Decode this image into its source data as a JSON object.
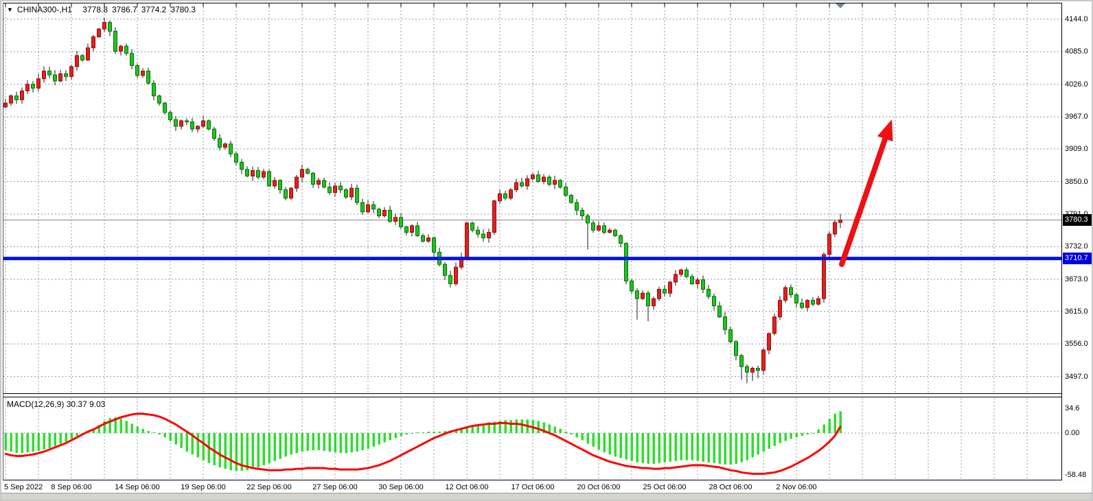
{
  "info_bar": {
    "collapse_icon": "▼",
    "symbol": "CHINA300-,H1",
    "open": "3778.8",
    "high": "3786.7",
    "low": "3774.2",
    "close": "3780.3"
  },
  "indicator_bar": {
    "name_params": "MACD(12,26,9)",
    "main_value": "30.37",
    "signal_value": "9.03"
  },
  "badges": {
    "current_price": "3780.3",
    "support_line_price": "3710.7"
  },
  "colors": {
    "candle_up": "#e02020",
    "candle_up_border": "#9b0b0b",
    "candle_down": "#1fc423",
    "candle_down_border": "#007000",
    "wick": "#1a1a1a",
    "grid": "#8a98a8",
    "macd_histogram": "#2fdd2f",
    "macd_signal": "#ff0000",
    "support_line": "#0014e6",
    "current_price_line": "#808080",
    "arrow": "#ee1111",
    "badge_current_bg": "#000000",
    "badge_line_bg": "#0000dd",
    "last_bar_marker": "#70828f"
  },
  "chart_data": [
    {
      "type": "candlestick",
      "title": "CHINA300-,H1",
      "timeframe": "H1",
      "ohlc_display": {
        "open": 3778.8,
        "high": 3786.7,
        "low": 3774.2,
        "close": 3780.3
      },
      "support_line": 3710.7,
      "current_price": 3780.3,
      "ylim": [
        3470,
        4160
      ],
      "y_ticks": [
        "4144.0",
        "4085.0",
        "4026.0",
        "3967.0",
        "3909.0",
        "3850.0",
        "3791.0",
        "3732.0",
        "3673.0",
        "3615.0",
        "3556.0",
        "3497.0"
      ],
      "x_labels": [
        "5 Sep 2022",
        "8 Sep 06:00",
        "14 Sep 06:00",
        "19 Sep 06:00",
        "22 Sep 06:00",
        "27 Sep 06:00",
        "30 Sep 06:00",
        "12 Oct 06:00",
        "17 Oct 06:00",
        "20 Oct 06:00",
        "25 Oct 06:00",
        "28 Oct 06:00",
        "2 Nov 06:00"
      ],
      "first_open": 3985,
      "closes": [
        3992,
        4005,
        3998,
        4014,
        4026,
        4019,
        4036,
        4050,
        4043,
        4032,
        4045,
        4040,
        4058,
        4078,
        4070,
        4092,
        4112,
        4126,
        4138,
        4122,
        4086,
        4095,
        4082,
        4060,
        4042,
        4050,
        4028,
        4005,
        3992,
        3975,
        3962,
        3950,
        3960,
        3958,
        3945,
        3950,
        3960,
        3945,
        3928,
        3912,
        3918,
        3900,
        3885,
        3872,
        3860,
        3870,
        3858,
        3868,
        3842,
        3852,
        3835,
        3820,
        3838,
        3858,
        3872,
        3865,
        3845,
        3852,
        3840,
        3830,
        3842,
        3835,
        3822,
        3838,
        3812,
        3795,
        3808,
        3800,
        3788,
        3798,
        3778,
        3785,
        3768,
        3758,
        3770,
        3752,
        3742,
        3748,
        3722,
        3700,
        3680,
        3665,
        3695,
        3712,
        3775,
        3762,
        3755,
        3748,
        3758,
        3815,
        3828,
        3820,
        3835,
        3848,
        3842,
        3855,
        3862,
        3850,
        3858,
        3845,
        3852,
        3840,
        3825,
        3812,
        3798,
        3788,
        3775,
        3762,
        3770,
        3758,
        3762,
        3752,
        3738,
        3670,
        3652,
        3638,
        3648,
        3625,
        3638,
        3655,
        3648,
        3668,
        3682,
        3690,
        3678,
        3665,
        3672,
        3655,
        3642,
        3625,
        3605,
        3582,
        3560,
        3535,
        3515,
        3505,
        3512,
        3508,
        3545,
        3575,
        3605,
        3635,
        3658,
        3645,
        3630,
        3622,
        3635,
        3628,
        3638,
        3718,
        3755,
        3776,
        3780.3
      ],
      "wick_overrides": {
        "78": [
          3,
          14
        ],
        "106": [
          4,
          48
        ],
        "113": [
          2,
          6
        ],
        "115": [
          5,
          38
        ],
        "117": [
          4,
          28
        ],
        "134": [
          3,
          24
        ],
        "135": [
          4,
          20
        ],
        "136": [
          3,
          16
        ],
        "137": [
          5,
          14
        ],
        "152": [
          11,
          10
        ]
      }
    },
    {
      "type": "bar",
      "name": "MACD(12,26,9)",
      "main_value": 30.37,
      "signal_value": 9.03,
      "y_ticks": [
        "34.6",
        "0.00",
        "-58.48"
      ],
      "ylim": [
        -58.48,
        34.6
      ],
      "histogram": [
        -24,
        -26,
        -28,
        -28,
        -27,
        -26,
        -25,
        -23,
        -21,
        -18,
        -15,
        -12,
        -8,
        -4,
        -2,
        2,
        6,
        11,
        17,
        21,
        22,
        20,
        17,
        13,
        9,
        6,
        3,
        1,
        -2,
        -6,
        -11,
        -16,
        -21,
        -26,
        -30,
        -34,
        -38,
        -42,
        -45,
        -48,
        -50,
        -52,
        -53,
        -53,
        -52,
        -50,
        -48,
        -45,
        -42,
        -39,
        -36,
        -33,
        -30,
        -28,
        -26,
        -25,
        -24,
        -24,
        -25,
        -26,
        -27,
        -28,
        -28,
        -27,
        -26,
        -24,
        -22,
        -19,
        -16,
        -13,
        -10,
        -7,
        -4,
        -2,
        0,
        1,
        1,
        2,
        2,
        2,
        3,
        3,
        4,
        5,
        7,
        9,
        11,
        13,
        15,
        16,
        17,
        18,
        18,
        19,
        19,
        19,
        18,
        17,
        15,
        12,
        9,
        6,
        2,
        -2,
        -6,
        -10,
        -15,
        -19,
        -23,
        -27,
        -30,
        -33,
        -35,
        -37,
        -39,
        -41,
        -42,
        -43,
        -43,
        -42,
        -41,
        -40,
        -39,
        -38,
        -38,
        -38,
        -39,
        -40,
        -41,
        -42,
        -43,
        -44,
        -44,
        -43,
        -41,
        -38,
        -34,
        -30,
        -26,
        -22,
        -18,
        -14,
        -11,
        -8,
        -6,
        -4,
        -2,
        0,
        5,
        12,
        20,
        27,
        30.4
      ],
      "signal": [
        -29,
        -31,
        -32,
        -32,
        -31,
        -30,
        -28,
        -26,
        -23,
        -20,
        -17,
        -14,
        -10,
        -6,
        -2,
        2,
        5,
        9,
        13,
        16,
        19,
        22,
        24,
        26,
        27,
        27,
        26,
        25,
        23,
        20,
        16,
        12,
        7,
        2,
        -3,
        -9,
        -14,
        -20,
        -25,
        -30,
        -34,
        -38,
        -42,
        -45,
        -47,
        -49,
        -50,
        -51,
        -52,
        -52,
        -52,
        -51,
        -51,
        -50,
        -50,
        -49,
        -49,
        -49,
        -49,
        -50,
        -50,
        -51,
        -51,
        -51,
        -51,
        -50,
        -49,
        -47,
        -45,
        -42,
        -39,
        -35,
        -31,
        -27,
        -23,
        -19,
        -15,
        -11,
        -7,
        -4,
        -1,
        2,
        4,
        6,
        8,
        10,
        11,
        12,
        13,
        13,
        14,
        14,
        13,
        13,
        12,
        10,
        8,
        6,
        3,
        0,
        -3,
        -7,
        -11,
        -15,
        -19,
        -23,
        -27,
        -31,
        -34,
        -37,
        -40,
        -42,
        -44,
        -46,
        -47,
        -48,
        -49,
        -49,
        -50,
        -50,
        -49,
        -49,
        -48,
        -47,
        -46,
        -45,
        -45,
        -45,
        -46,
        -47,
        -48,
        -50,
        -52,
        -53,
        -55,
        -56,
        -57,
        -57,
        -57,
        -56,
        -55,
        -53,
        -50,
        -47,
        -43,
        -39,
        -35,
        -30,
        -25,
        -19,
        -12,
        -4,
        9
      ]
    }
  ],
  "annotations": {
    "trend_arrow": {
      "from": [
        1224,
        383
      ],
      "to": [
        1297,
        172
      ]
    }
  }
}
